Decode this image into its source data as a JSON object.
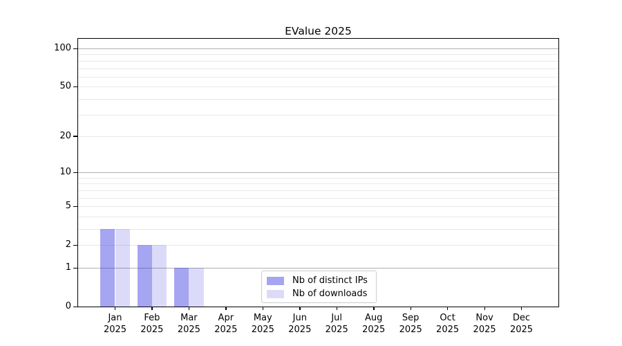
{
  "chart_data": {
    "type": "bar",
    "title": "EValue 2025",
    "categories": [
      "Jan",
      "Feb",
      "Mar",
      "Apr",
      "May",
      "Jun",
      "Jul",
      "Aug",
      "Sep",
      "Oct",
      "Nov",
      "Dec"
    ],
    "category_year": "2025",
    "series": [
      {
        "name": "Nb of distinct IPs",
        "color": "rgba(40,40,225,0.42)",
        "color_on_white": "#a5a5f2",
        "values": [
          3,
          2,
          1,
          0,
          0,
          0,
          0,
          0,
          0,
          0,
          0,
          0
        ]
      },
      {
        "name": "Nb of downloads",
        "color": "rgba(30,30,215,0.16)",
        "color_on_white": "#dbdbf9",
        "values": [
          3,
          2,
          1,
          0,
          0,
          0,
          0,
          0,
          0,
          0,
          0,
          0
        ]
      }
    ],
    "xlabel": "",
    "ylabel": "",
    "y_axis": {
      "scale": "log10(value+1)",
      "ylim": [
        0,
        115
      ],
      "tick_values": [
        0,
        1,
        2,
        5,
        10,
        20,
        50,
        100
      ],
      "tick_labels": [
        "0",
        "1",
        "2",
        "5",
        "10",
        "20",
        "50",
        "100"
      ],
      "major_gridline_values": [
        1,
        10,
        100
      ],
      "minor_gridline_values": [
        2,
        3,
        4,
        5,
        6,
        7,
        8,
        9,
        20,
        30,
        40,
        50,
        60,
        70,
        80,
        90
      ]
    },
    "legend": {
      "position": "lower center",
      "entries": [
        "Nb of distinct IPs",
        "Nb of downloads"
      ]
    },
    "grid": true,
    "colors": {
      "background": "#ffffff",
      "spine": "#000000",
      "major_grid": "#b0b0b0",
      "minor_grid": "#e8e8e8",
      "legend_border": "#cccccc",
      "text": "#000000"
    }
  }
}
